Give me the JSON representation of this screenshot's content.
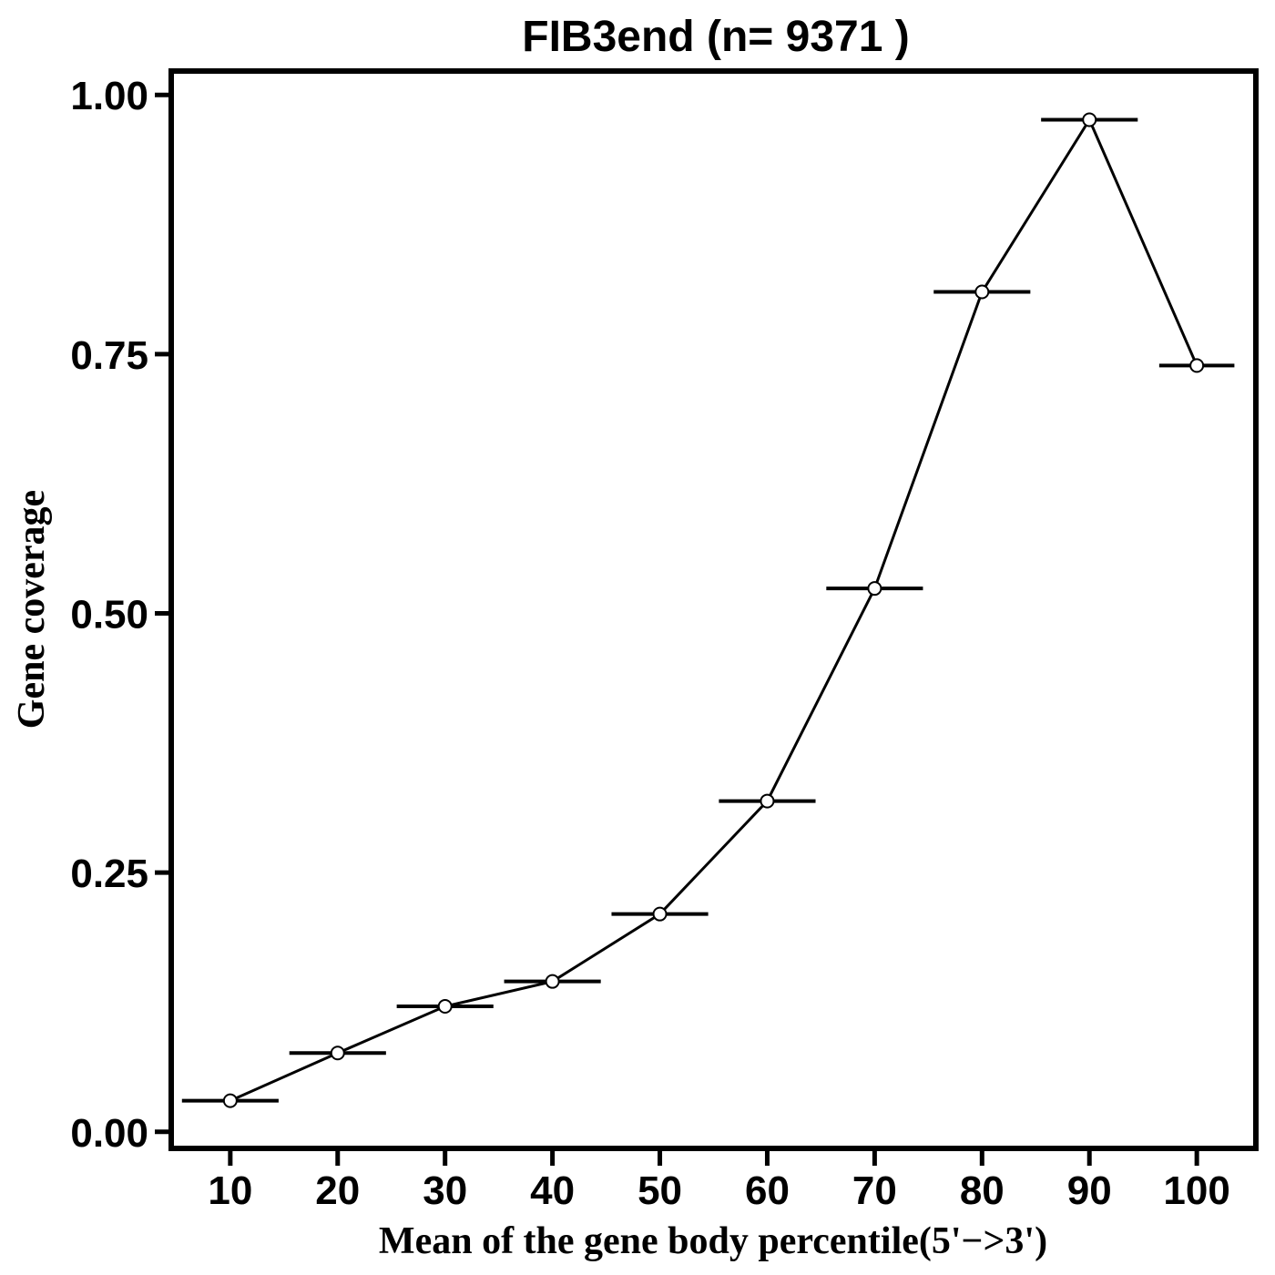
{
  "chart_data": {
    "type": "line",
    "title": "FIB3end (n= 9371 )",
    "xlabel": "Mean of the gene body percentile(5'−>3')",
    "ylabel": "Gene coverage",
    "x": [
      10,
      20,
      30,
      40,
      50,
      60,
      70,
      80,
      90,
      100
    ],
    "x_ticks": [
      "10",
      "20",
      "30",
      "40",
      "50",
      "60",
      "70",
      "80",
      "90",
      "100"
    ],
    "y_ticks": [
      "0.00",
      "0.25",
      "0.50",
      "0.75",
      "1.00"
    ],
    "y_tick_values": [
      0,
      0.25,
      0.5,
      0.75,
      1.0
    ],
    "series": [
      {
        "values": [
          0.03,
          0.076,
          0.121,
          0.145,
          0.21,
          0.319,
          0.524,
          0.81,
          0.976,
          0.739
        ],
        "error_x": [
          4.5,
          4.5,
          4.5,
          4.5,
          4.5,
          4.5,
          4.5,
          4.5,
          4.5,
          3.5
        ]
      }
    ],
    "xlim": [
      4.5,
      105.5
    ],
    "ylim": [
      -0.016,
      1.023
    ],
    "grid": false,
    "legend": "none",
    "colors": {
      "line": "#000000",
      "marker_fill": "#ffffff",
      "frame": "#000000"
    }
  }
}
